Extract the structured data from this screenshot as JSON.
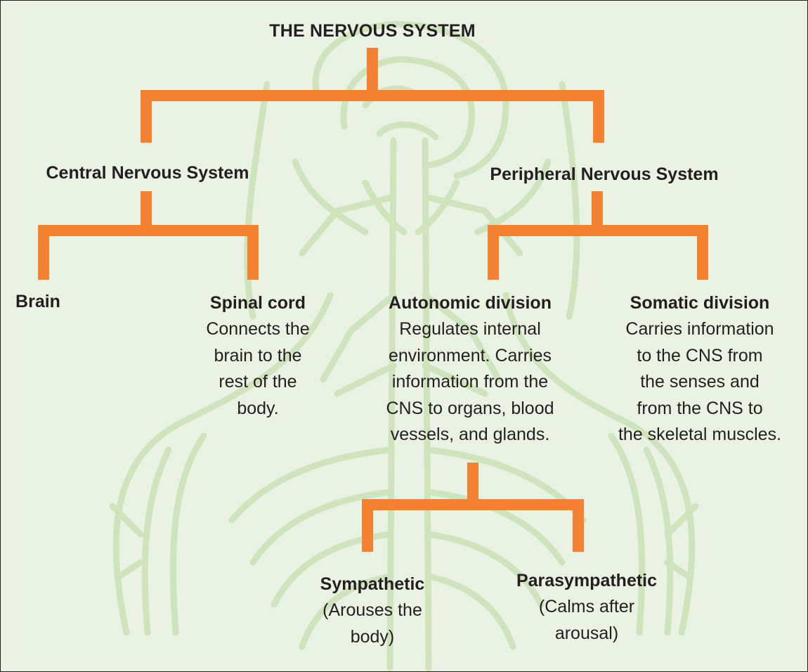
{
  "title": "THE NERVOUS SYSTEM",
  "colors": {
    "background": "#eaf3e3",
    "illustration": "#cfe3bd",
    "connector": "#f58233",
    "text": "#231f20"
  },
  "nodes": {
    "cns": {
      "label": "Central Nervous System"
    },
    "pns": {
      "label": "Peripheral Nervous System"
    },
    "brain": {
      "label": "Brain"
    },
    "spinal": {
      "label": "Spinal cord",
      "desc": [
        "Connects the",
        "brain to the",
        "rest of the",
        "body."
      ]
    },
    "autonomic": {
      "label": "Autonomic division",
      "desc": [
        "Regulates internal",
        "environment. Carries",
        "information from the",
        "CNS to organs, blood",
        "vessels, and glands."
      ]
    },
    "somatic": {
      "label": "Somatic division",
      "desc": [
        "Carries information",
        "to the CNS from",
        "the senses and",
        "from the CNS to",
        "the skeletal muscles."
      ]
    },
    "sympathetic": {
      "label": "Sympathetic",
      "desc": [
        "(Arouses the",
        "body)"
      ]
    },
    "parasympathetic": {
      "label": "Parasympathetic",
      "desc": [
        "(Calms after",
        "arousal)"
      ]
    }
  }
}
